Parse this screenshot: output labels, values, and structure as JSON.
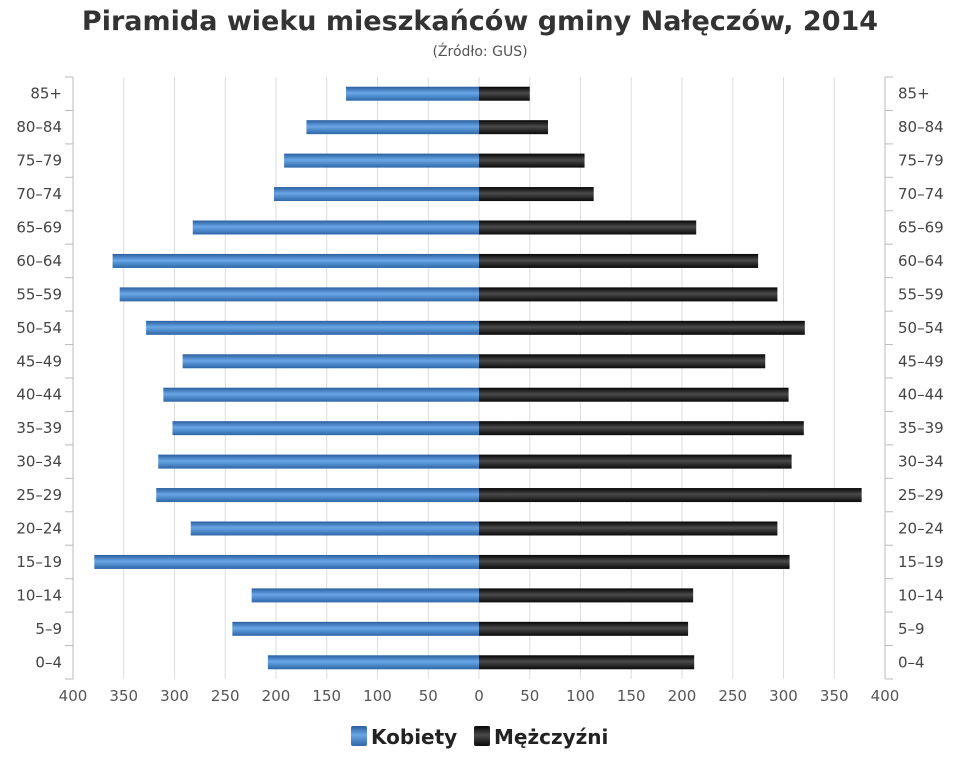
{
  "chart_data": {
    "type": "bar",
    "orientation": "horizontal",
    "title": "Piramida wieku mieszkańców gminy Nałęczów, 2014",
    "subtitle": "(Źródło: GUS)",
    "categories": [
      "0–4",
      "5–9",
      "10–14",
      "15–19",
      "20–24",
      "25–29",
      "30–34",
      "35–39",
      "40–44",
      "45–49",
      "50–54",
      "55–59",
      "60–64",
      "65–69",
      "70–74",
      "75–79",
      "80–84",
      "85+"
    ],
    "series": [
      {
        "name": "Kobiety",
        "color": "#3a78bd",
        "values": [
          208,
          243,
          224,
          379,
          284,
          318,
          316,
          302,
          311,
          292,
          328,
          354,
          361,
          282,
          202,
          192,
          170,
          131
        ]
      },
      {
        "name": "Mężczyźni",
        "color": "#1a1a1a",
        "values": [
          212,
          206,
          211,
          306,
          294,
          377,
          308,
          320,
          305,
          282,
          321,
          294,
          275,
          214,
          113,
          104,
          68,
          50
        ]
      }
    ],
    "x_ticks": [
      "400",
      "350",
      "300",
      "250",
      "200",
      "150",
      "100",
      "50",
      "0",
      "50",
      "100",
      "150",
      "200",
      "250",
      "300",
      "350",
      "400"
    ],
    "xlim": [
      -400,
      400
    ],
    "grid": true,
    "legend_position": "bottom"
  }
}
